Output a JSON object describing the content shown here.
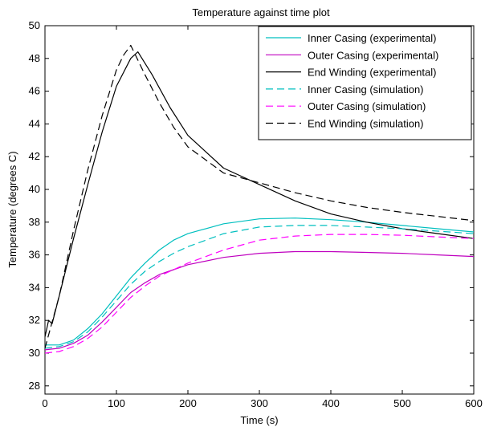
{
  "chart_data": {
    "type": "line",
    "title": "Temperature against time plot",
    "xlabel": "Time (s)",
    "ylabel": "Temperature (degrees C)",
    "xlim": [
      0,
      600
    ],
    "ylim": [
      27.5,
      50
    ],
    "xticks": [
      0,
      100,
      200,
      300,
      400,
      500,
      600
    ],
    "yticks": [
      28,
      30,
      32,
      34,
      36,
      38,
      40,
      42,
      44,
      46,
      48,
      50
    ],
    "grid": false,
    "legend_position": "top-right",
    "series": [
      {
        "name": "Inner Casing (experimental)",
        "color": "#00bfbf",
        "style": "solid",
        "x": [
          0,
          20,
          40,
          60,
          80,
          100,
          120,
          140,
          160,
          180,
          200,
          250,
          300,
          350,
          400,
          450,
          500,
          550,
          600
        ],
        "y": [
          30.5,
          30.5,
          30.8,
          31.5,
          32.4,
          33.5,
          34.6,
          35.5,
          36.3,
          36.9,
          37.3,
          37.9,
          38.2,
          38.25,
          38.15,
          38.0,
          37.8,
          37.6,
          37.4
        ]
      },
      {
        "name": "Outer Casing (experimental)",
        "color": "#bf00bf",
        "style": "solid",
        "x": [
          0,
          20,
          40,
          60,
          80,
          100,
          120,
          140,
          160,
          180,
          200,
          250,
          300,
          350,
          400,
          450,
          500,
          550,
          600
        ],
        "y": [
          30.2,
          30.3,
          30.6,
          31.1,
          31.9,
          32.8,
          33.7,
          34.3,
          34.8,
          35.1,
          35.4,
          35.85,
          36.1,
          36.2,
          36.2,
          36.15,
          36.1,
          36.0,
          35.9
        ]
      },
      {
        "name": "End Winding (experimental)",
        "color": "#000000",
        "style": "solid",
        "x": [
          0,
          5,
          10,
          20,
          40,
          60,
          80,
          100,
          120,
          130,
          150,
          175,
          200,
          250,
          300,
          350,
          400,
          450,
          500,
          550,
          600
        ],
        "y": [
          31.0,
          32.0,
          31.8,
          33.5,
          37.0,
          40.3,
          43.5,
          46.3,
          48.0,
          48.4,
          47.0,
          45.0,
          43.3,
          41.3,
          40.3,
          39.3,
          38.5,
          38.0,
          37.6,
          37.3,
          37.0
        ]
      },
      {
        "name": "Inner Casing (simulation)",
        "color": "#00bfbf",
        "style": "dashed",
        "x": [
          0,
          20,
          40,
          60,
          80,
          100,
          120,
          140,
          160,
          180,
          200,
          250,
          300,
          350,
          400,
          450,
          500,
          550,
          600
        ],
        "y": [
          30.3,
          30.4,
          30.7,
          31.3,
          32.2,
          33.2,
          34.2,
          35.0,
          35.6,
          36.1,
          36.5,
          37.3,
          37.7,
          37.8,
          37.8,
          37.7,
          37.6,
          37.45,
          37.3
        ]
      },
      {
        "name": "Outer Casing (simulation)",
        "color": "#ff00ff",
        "style": "dashed",
        "x": [
          0,
          20,
          40,
          60,
          80,
          100,
          120,
          140,
          160,
          180,
          200,
          250,
          300,
          350,
          400,
          450,
          500,
          550,
          600
        ],
        "y": [
          30.0,
          30.1,
          30.4,
          30.9,
          31.6,
          32.5,
          33.4,
          34.1,
          34.7,
          35.1,
          35.5,
          36.3,
          36.9,
          37.15,
          37.25,
          37.25,
          37.2,
          37.1,
          37.0
        ]
      },
      {
        "name": "End Winding (simulation)",
        "color": "#000000",
        "style": "dashed",
        "x": [
          0,
          20,
          40,
          60,
          80,
          100,
          110,
          120,
          140,
          160,
          180,
          200,
          250,
          300,
          350,
          400,
          450,
          500,
          550,
          600
        ],
        "y": [
          30.3,
          33.5,
          37.5,
          41.2,
          44.5,
          47.3,
          48.2,
          48.8,
          47.0,
          45.3,
          43.8,
          42.6,
          41.0,
          40.4,
          39.8,
          39.3,
          38.9,
          38.6,
          38.35,
          38.1
        ]
      }
    ]
  }
}
